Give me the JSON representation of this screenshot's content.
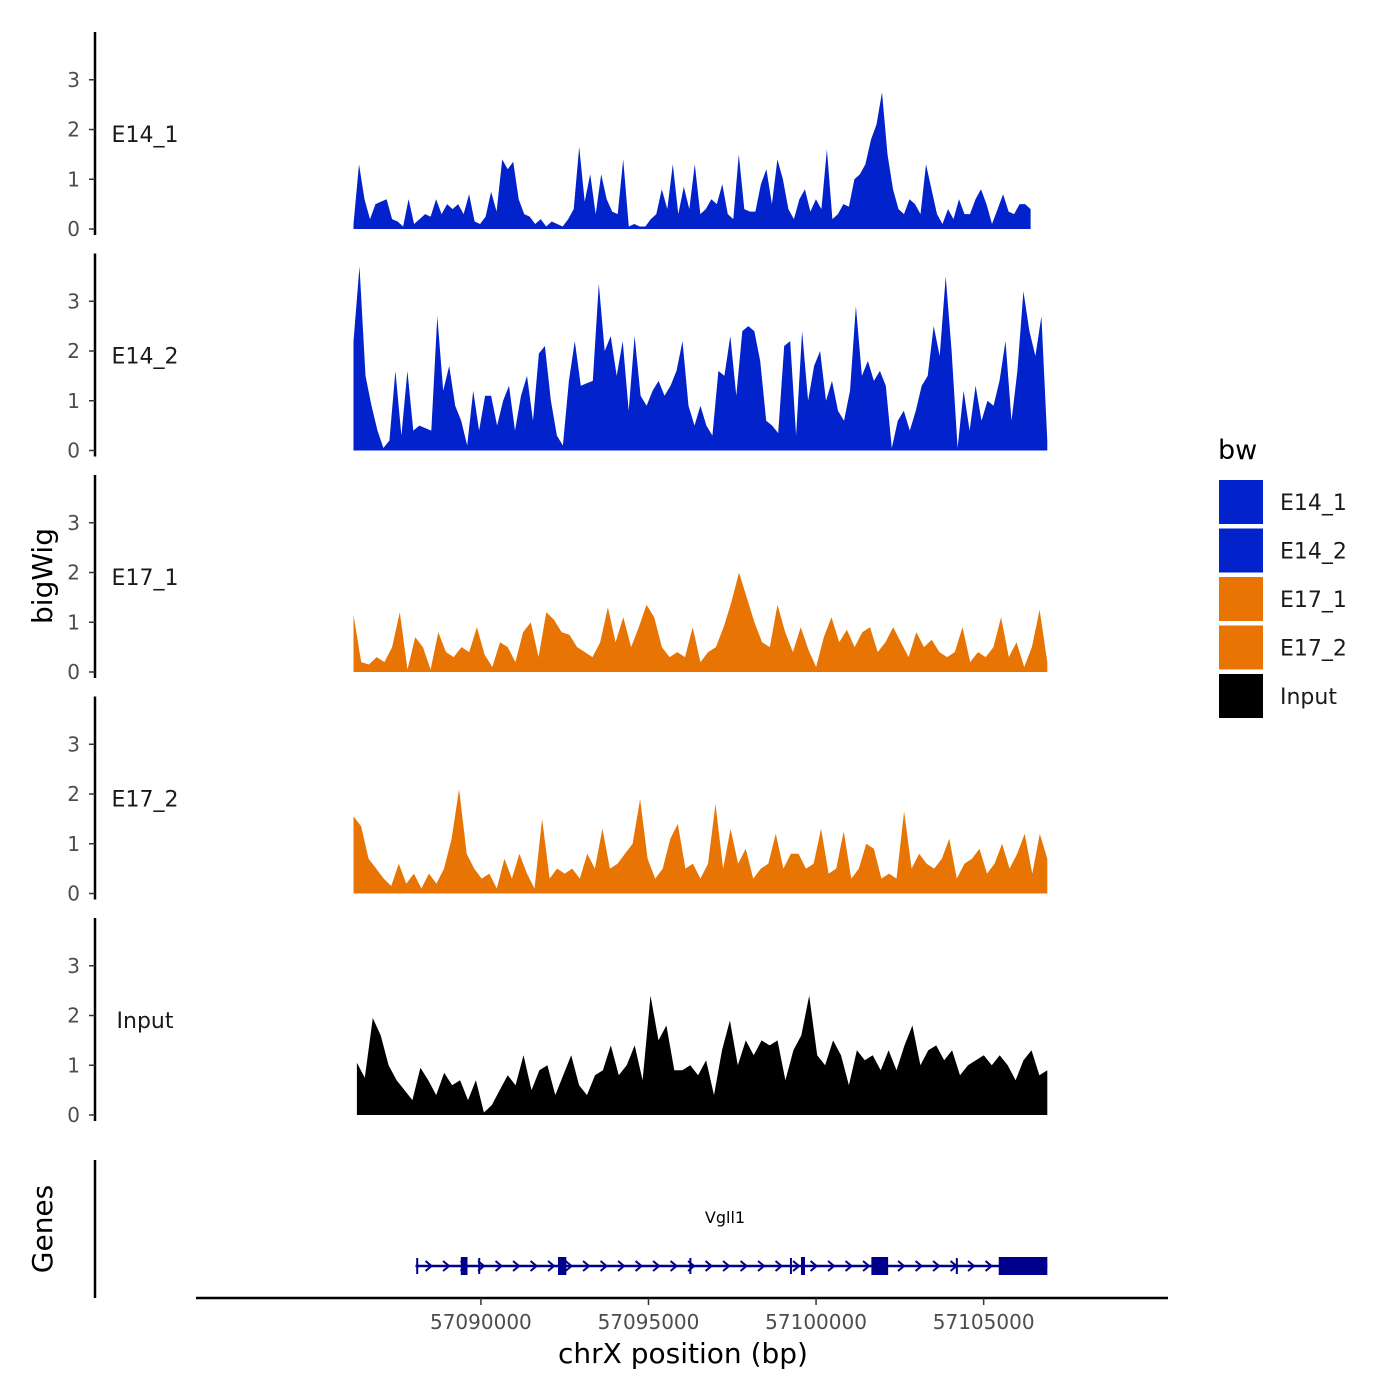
{
  "chart_data": {
    "type": "area",
    "xlabel": "chrX position (bp)",
    "ylabel": "bigWig",
    "genes_label": "Genes",
    "xlim": [
      57081500,
      57110500
    ],
    "ylim": [
      0,
      3.9
    ],
    "x_ticks": [
      57090000,
      57095000,
      57100000,
      57105000
    ],
    "x_tick_labels": [
      "57090000",
      "57095000",
      "57100000",
      "57105000"
    ],
    "y_ticks": [
      0,
      1,
      2,
      3
    ],
    "y_tick_labels": [
      "0",
      "1",
      "2",
      "3"
    ],
    "legend_title": "bw",
    "legend": [
      {
        "name": "E14_1",
        "color": "#0222CC"
      },
      {
        "name": "E14_2",
        "color": "#0222CC"
      },
      {
        "name": "E17_1",
        "color": "#E87503"
      },
      {
        "name": "E17_2",
        "color": "#E87503"
      },
      {
        "name": "Input",
        "color": "#000000"
      }
    ],
    "series": [
      {
        "name": "E14_1",
        "color": "#0222CC",
        "x_start": 57086200,
        "x_end": 57106400,
        "values": [
          0.1,
          1.3,
          0.6,
          0.2,
          0.5,
          0.55,
          0.6,
          0.2,
          0.15,
          0.05,
          0.6,
          0.1,
          0.2,
          0.3,
          0.25,
          0.6,
          0.3,
          0.5,
          0.4,
          0.5,
          0.3,
          0.7,
          0.15,
          0.1,
          0.25,
          0.75,
          0.35,
          1.4,
          1.2,
          1.35,
          0.6,
          0.3,
          0.25,
          0.1,
          0.2,
          0.05,
          0.15,
          0.1,
          0.05,
          0.2,
          0.4,
          1.65,
          0.55,
          1.1,
          0.3,
          1.1,
          0.6,
          0.35,
          0.3,
          1.4,
          0.05,
          0.1,
          0.05,
          0.05,
          0.2,
          0.3,
          0.8,
          0.4,
          1.3,
          0.3,
          0.85,
          0.4,
          1.3,
          0.3,
          0.4,
          0.6,
          0.5,
          0.9,
          0.3,
          0.2,
          1.5,
          0.4,
          0.35,
          0.35,
          0.9,
          1.2,
          0.5,
          1.4,
          1.0,
          0.4,
          0.2,
          0.6,
          0.8,
          0.35,
          0.6,
          0.4,
          1.6,
          0.2,
          0.3,
          0.5,
          0.45,
          1.0,
          1.1,
          1.3,
          1.8,
          2.1,
          2.75,
          1.5,
          0.8,
          0.4,
          0.3,
          0.6,
          0.5,
          0.3,
          1.3,
          0.8,
          0.3,
          0.1,
          0.4,
          0.2,
          0.6,
          0.3,
          0.3,
          0.6,
          0.8,
          0.5,
          0.1,
          0.4,
          0.7,
          0.35,
          0.3,
          0.5,
          0.5,
          0.4
        ]
      },
      {
        "name": "E14_2",
        "color": "#0222CC",
        "x_start": 57086200,
        "x_end": 57106900,
        "values": [
          2.2,
          3.7,
          1.5,
          0.9,
          0.4,
          0.05,
          0.2,
          1.6,
          0.3,
          1.6,
          0.4,
          0.5,
          0.45,
          0.4,
          2.7,
          1.2,
          1.7,
          0.9,
          0.6,
          0.1,
          1.2,
          0.4,
          1.1,
          1.1,
          0.5,
          1.0,
          1.3,
          0.4,
          1.1,
          1.5,
          0.6,
          1.95,
          2.1,
          1.0,
          0.3,
          0.1,
          1.4,
          2.2,
          1.3,
          1.35,
          1.4,
          3.35,
          2.0,
          2.3,
          1.5,
          2.2,
          0.8,
          2.3,
          1.1,
          0.9,
          1.2,
          1.4,
          1.1,
          1.3,
          1.6,
          2.2,
          0.9,
          0.5,
          0.9,
          0.5,
          0.3,
          1.6,
          1.5,
          2.3,
          1.1,
          2.4,
          2.5,
          2.4,
          1.8,
          0.6,
          0.5,
          0.35,
          2.1,
          2.2,
          0.3,
          2.4,
          1.0,
          1.7,
          2.0,
          1.0,
          1.4,
          0.8,
          0.6,
          1.2,
          2.9,
          1.5,
          1.8,
          1.4,
          1.6,
          1.3,
          0.05,
          0.6,
          0.8,
          0.4,
          0.8,
          1.3,
          1.5,
          2.5,
          1.9,
          3.5,
          2.0,
          0.05,
          1.2,
          0.4,
          1.3,
          0.6,
          1.0,
          0.9,
          1.4,
          2.2,
          0.6,
          1.6,
          3.2,
          2.4,
          1.9,
          2.7,
          0.2
        ]
      },
      {
        "name": "E17_1",
        "color": "#E87503",
        "x_start": 57086200,
        "x_end": 57106900,
        "values": [
          1.15,
          0.2,
          0.15,
          0.3,
          0.2,
          0.5,
          1.2,
          0.05,
          0.7,
          0.5,
          0.05,
          0.8,
          0.4,
          0.3,
          0.5,
          0.4,
          0.9,
          0.35,
          0.1,
          0.6,
          0.5,
          0.2,
          0.8,
          1.0,
          0.3,
          1.2,
          1.05,
          0.8,
          0.75,
          0.5,
          0.4,
          0.3,
          0.6,
          1.3,
          0.6,
          1.1,
          0.5,
          0.9,
          1.35,
          1.1,
          0.5,
          0.3,
          0.4,
          0.3,
          0.9,
          0.2,
          0.4,
          0.5,
          0.9,
          1.4,
          2.0,
          1.5,
          1.0,
          0.6,
          0.5,
          1.35,
          0.8,
          0.4,
          0.9,
          0.45,
          0.1,
          0.7,
          1.1,
          0.6,
          0.85,
          0.5,
          0.8,
          0.9,
          0.4,
          0.6,
          0.9,
          0.6,
          0.3,
          0.8,
          0.5,
          0.65,
          0.4,
          0.3,
          0.4,
          0.9,
          0.2,
          0.4,
          0.3,
          0.5,
          1.1,
          0.3,
          0.6,
          0.1,
          0.5,
          1.25,
          0.2
        ]
      },
      {
        "name": "E17_2",
        "color": "#E87503",
        "x_start": 57086200,
        "x_end": 57106900,
        "values": [
          1.55,
          1.35,
          0.7,
          0.5,
          0.3,
          0.15,
          0.6,
          0.2,
          0.4,
          0.1,
          0.4,
          0.2,
          0.5,
          1.1,
          2.1,
          0.8,
          0.5,
          0.3,
          0.4,
          0.1,
          0.7,
          0.3,
          0.8,
          0.4,
          0.1,
          1.5,
          0.3,
          0.5,
          0.4,
          0.5,
          0.3,
          0.8,
          0.5,
          1.3,
          0.5,
          0.6,
          0.8,
          1.0,
          1.9,
          0.7,
          0.3,
          0.5,
          1.1,
          1.4,
          0.5,
          0.6,
          0.3,
          0.6,
          1.8,
          0.5,
          1.3,
          0.6,
          0.9,
          0.3,
          0.5,
          0.6,
          1.2,
          0.5,
          0.8,
          0.8,
          0.5,
          0.6,
          1.3,
          0.4,
          0.5,
          1.25,
          0.3,
          0.5,
          1.0,
          0.9,
          0.3,
          0.4,
          0.3,
          1.65,
          0.5,
          0.8,
          0.6,
          0.5,
          0.7,
          1.1,
          0.3,
          0.6,
          0.7,
          0.9,
          0.4,
          0.6,
          1.0,
          0.5,
          0.8,
          1.2,
          0.4,
          1.2,
          0.7
        ]
      },
      {
        "name": "Input",
        "color": "#000000",
        "x_start": 57086300,
        "x_end": 57106900,
        "values": [
          1.05,
          0.75,
          1.95,
          1.6,
          1.0,
          0.7,
          0.5,
          0.3,
          0.95,
          0.7,
          0.4,
          0.85,
          0.6,
          0.7,
          0.3,
          0.7,
          0.05,
          0.2,
          0.5,
          0.8,
          0.6,
          1.2,
          0.5,
          0.9,
          1.0,
          0.4,
          0.8,
          1.2,
          0.6,
          0.4,
          0.8,
          0.9,
          1.4,
          0.8,
          1.0,
          1.4,
          0.7,
          2.4,
          1.5,
          1.8,
          0.9,
          0.9,
          1.0,
          0.8,
          1.1,
          0.4,
          1.3,
          1.9,
          1.0,
          1.5,
          1.2,
          1.5,
          1.4,
          1.5,
          0.7,
          1.3,
          1.6,
          2.4,
          1.2,
          1.0,
          1.5,
          1.2,
          0.6,
          1.3,
          1.1,
          1.2,
          0.9,
          1.3,
          0.9,
          1.4,
          1.8,
          1.0,
          1.3,
          1.4,
          1.1,
          1.3,
          0.8,
          1.0,
          1.1,
          1.2,
          1.0,
          1.2,
          1.0,
          0.7,
          1.1,
          1.3,
          0.8,
          0.9
        ]
      }
    ],
    "gene": {
      "name": "Vgll1",
      "start": 57088050,
      "end": 57106900,
      "strand": "+",
      "color": "#00008B",
      "exons": [
        [
          57089400,
          57089600
        ],
        [
          57092300,
          57092550
        ],
        [
          57099550,
          57099650
        ],
        [
          57101650,
          57102150
        ],
        [
          57105450,
          57106900
        ]
      ],
      "small_marks": [
        57088100,
        57089950,
        57096250,
        57099250,
        57104200
      ]
    }
  }
}
